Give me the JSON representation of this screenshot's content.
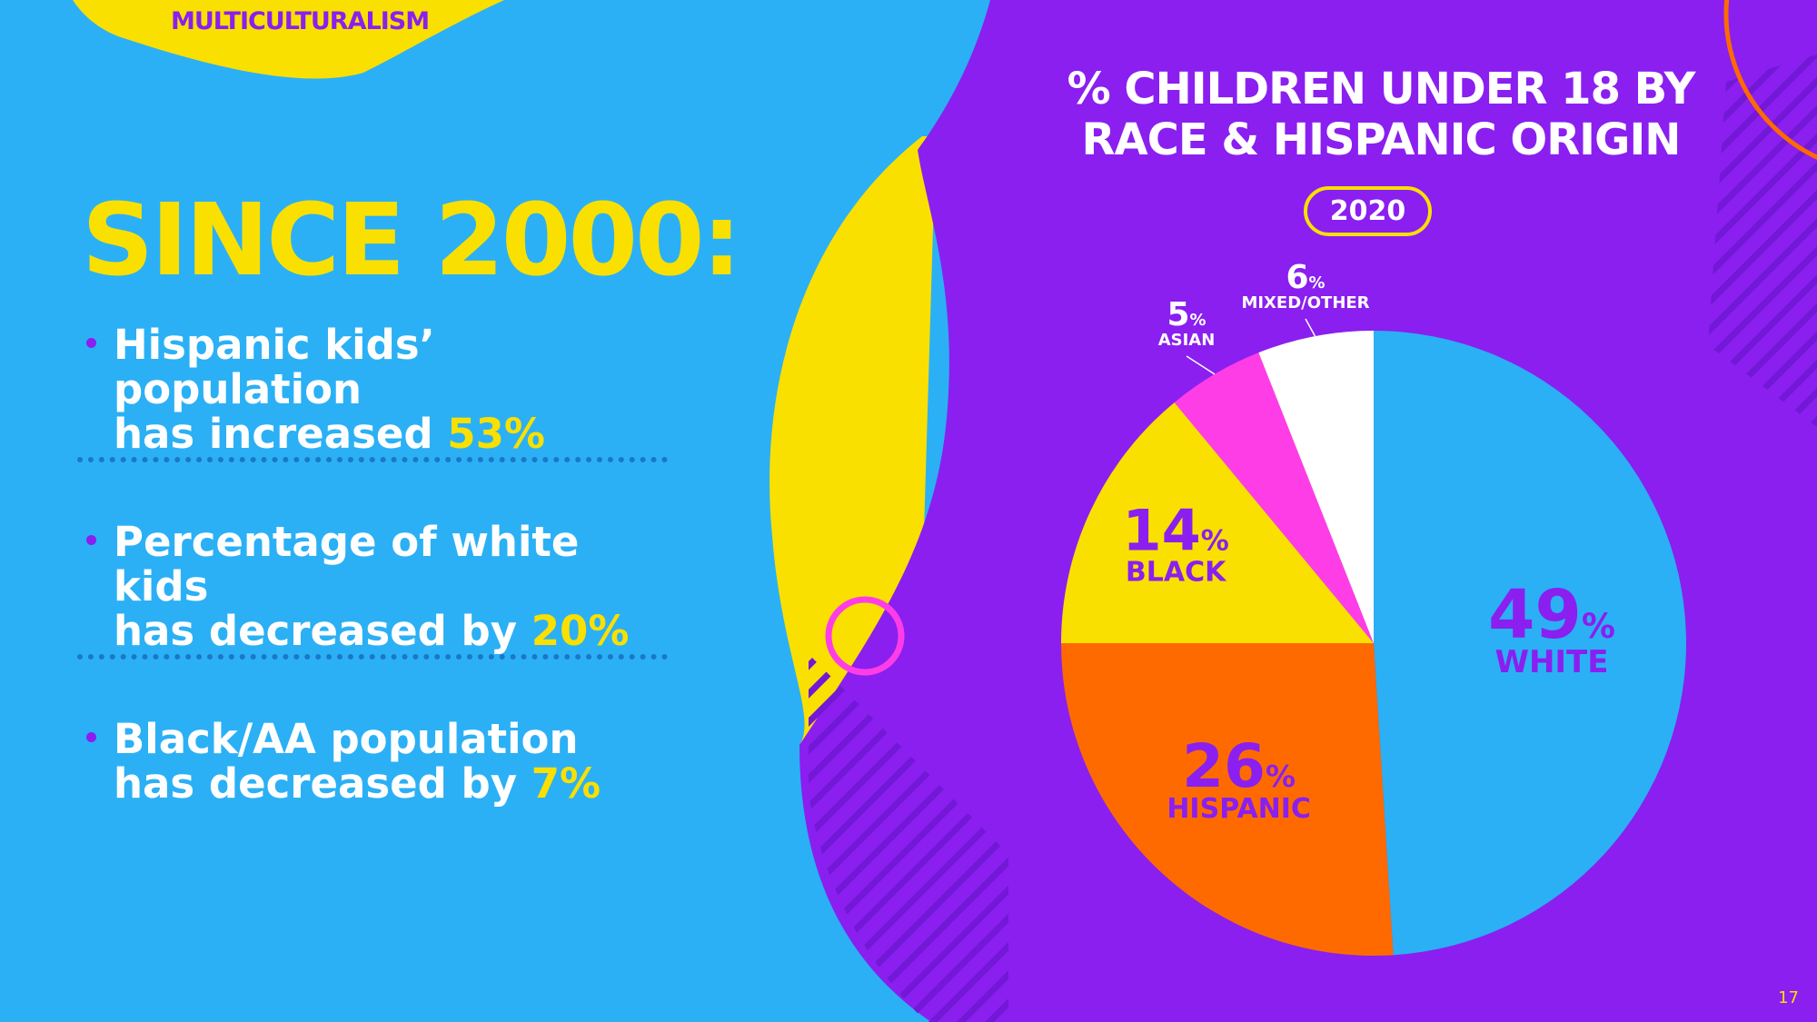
{
  "slide": {
    "section": "MULTICULTURALISM",
    "headline": "SINCE 2000:",
    "page_number": "17"
  },
  "bullets": [
    {
      "line1": "Hispanic kids’ population",
      "line2_prefix": "has increased ",
      "highlight": "53%"
    },
    {
      "line1": "Percentage of white kids",
      "line2_prefix": "has decreased by ",
      "highlight": "20%"
    },
    {
      "line1": "Black/AA population",
      "line2_prefix": "has decreased by ",
      "highlight": "7%"
    }
  ],
  "colors": {
    "blue": "#2bb0f5",
    "purple": "#8a1ff0",
    "yellow": "#f9e000",
    "orange": "#ff6a00",
    "magenta": "#ff3de6",
    "white": "#ffffff"
  },
  "chart_data": {
    "type": "pie",
    "title_line1": "% CHILDREN UNDER 18 BY",
    "title_line2": "RACE & HISPANIC ORIGIN",
    "year": "2020",
    "slices": [
      {
        "label": "WHITE",
        "value": 49,
        "color": "#2bb0f5"
      },
      {
        "label": "HISPANIC",
        "value": 26,
        "color": "#ff6a00"
      },
      {
        "label": "BLACK",
        "value": 14,
        "color": "#f9e000"
      },
      {
        "label": "ASIAN",
        "value": 5,
        "color": "#ff3de6"
      },
      {
        "label": "MIXED/OTHER",
        "value": 6,
        "color": "#ffffff"
      }
    ]
  }
}
